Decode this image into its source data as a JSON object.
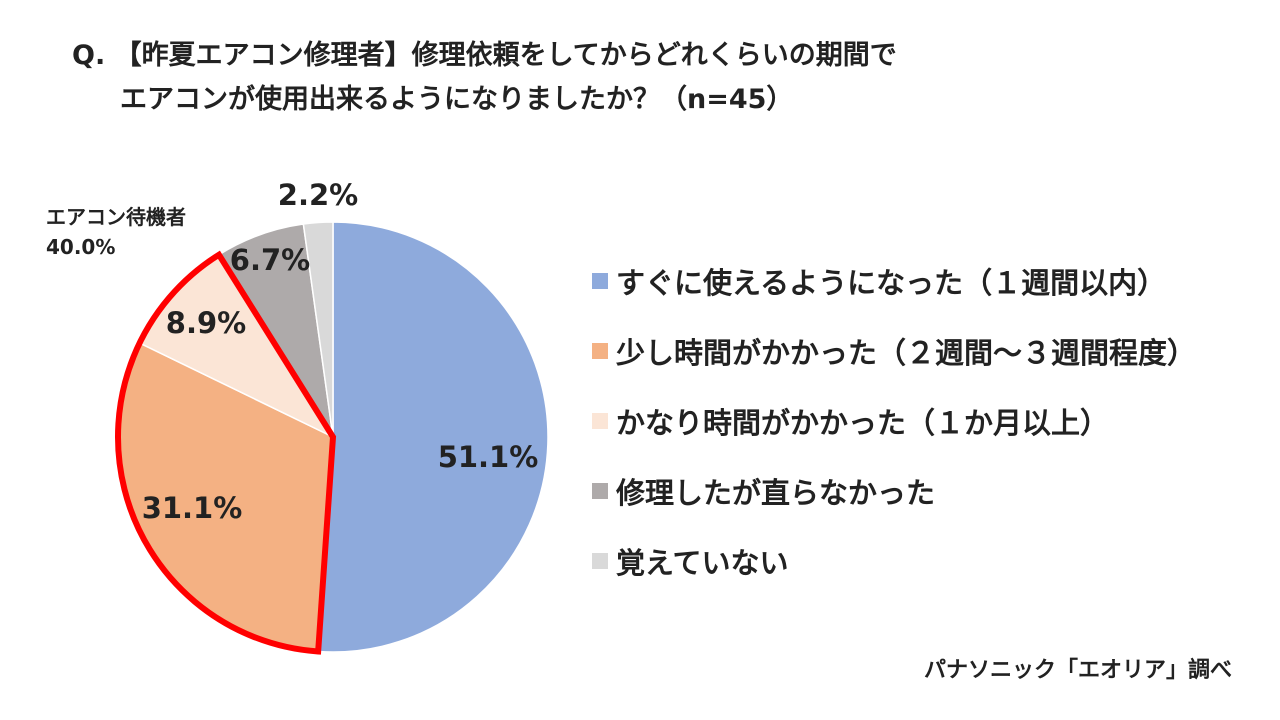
{
  "title": {
    "line1": "Q. 【昨夏エアコン修理者】修理依頼をしてからどれくらいの期間で",
    "line2": "エアコンが使用出来るようになりましたか？（n=45）"
  },
  "callout": {
    "label": "エアコン待機者",
    "value": "40.0%"
  },
  "source": "パナソニック「エオリア」調べ",
  "chart_data": {
    "type": "pie",
    "title": "Q. 【昨夏エアコン修理者】修理依頼をしてからどれくらいの期間で エアコンが使用出来るようになりましたか？（n=45）",
    "categories": [
      "すぐに使えるようになった（１週間以内）",
      "少し時間がかかった（２週間～３週間程度）",
      "かなり時間がかかった（１か月以上）",
      "修理したが直らなかった",
      "覚えていない"
    ],
    "values": [
      51.1,
      31.1,
      8.9,
      6.7,
      2.2
    ],
    "labels": [
      "51.1%",
      "31.1%",
      "8.9%",
      "6.7%",
      "2.2%"
    ],
    "colors": [
      "#8eaadc",
      "#f4b183",
      "#fbe5d6",
      "#aeaaaa",
      "#d9d9d9"
    ],
    "highlight_color": "#ff0000",
    "legend_position": "right"
  }
}
